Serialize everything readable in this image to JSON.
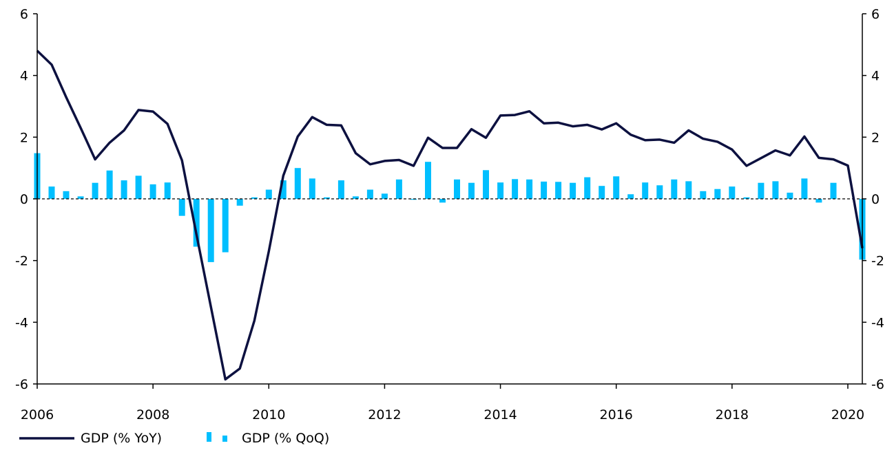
{
  "chart_data": {
    "type": "bar+line",
    "title": "",
    "xlabel": "",
    "ylabel": "",
    "ylim": [
      -6,
      6
    ],
    "yticks": [
      6,
      4,
      2,
      0,
      -2,
      -4,
      -6
    ],
    "ytick_labels": [
      "6",
      "4",
      "2",
      "0",
      "-2",
      "-4",
      "-6"
    ],
    "right_axis": true,
    "xlim": [
      2006,
      2020.25
    ],
    "xticks": [
      2006,
      2008,
      2010,
      2012,
      2014,
      2016,
      2018,
      2020
    ],
    "xtick_labels": [
      "2006",
      "2008",
      "2010",
      "2012",
      "2014",
      "2016",
      "2018",
      "2020"
    ],
    "zero_line": "dashed",
    "grid": false,
    "legend_position": "bottom-left",
    "x": [
      2006.0,
      2006.25,
      2006.5,
      2006.75,
      2007.0,
      2007.25,
      2007.5,
      2007.75,
      2008.0,
      2008.25,
      2008.5,
      2008.75,
      2009.0,
      2009.25,
      2009.5,
      2009.75,
      2010.0,
      2010.25,
      2010.5,
      2010.75,
      2011.0,
      2011.25,
      2011.5,
      2011.75,
      2012.0,
      2012.25,
      2012.5,
      2012.75,
      2013.0,
      2013.25,
      2013.5,
      2013.75,
      2014.0,
      2014.25,
      2014.5,
      2014.75,
      2015.0,
      2015.25,
      2015.5,
      2015.75,
      2016.0,
      2016.25,
      2016.5,
      2016.75,
      2017.0,
      2017.25,
      2017.5,
      2017.75,
      2018.0,
      2018.25,
      2018.5,
      2018.75,
      2019.0,
      2019.25,
      2019.5,
      2019.75,
      2020.0,
      2020.25
    ],
    "series": [
      {
        "name": "GDP (% YoY)",
        "kind": "line",
        "color": "#0d1140",
        "values": [
          4.8,
          4.35,
          3.3,
          2.3,
          1.28,
          1.82,
          2.22,
          2.88,
          2.83,
          2.43,
          1.25,
          -1.15,
          -3.5,
          -5.85,
          -5.5,
          -3.95,
          -1.7,
          0.75,
          2.02,
          2.65,
          2.4,
          2.38,
          1.48,
          1.12,
          1.23,
          1.26,
          1.07,
          1.98,
          1.65,
          1.65,
          2.26,
          1.98,
          2.7,
          2.72,
          2.84,
          2.45,
          2.47,
          2.35,
          2.4,
          2.25,
          2.45,
          2.08,
          1.9,
          1.92,
          1.82,
          2.22,
          1.95,
          1.85,
          1.6,
          1.07,
          1.32,
          1.57,
          1.41,
          2.02,
          1.33,
          1.28,
          1.08,
          -1.6
        ]
      },
      {
        "name": "GDP (% QoQ)",
        "kind": "bar",
        "color": "#00bfff",
        "values": [
          1.48,
          0.4,
          0.25,
          0.08,
          0.52,
          0.92,
          0.6,
          0.75,
          0.47,
          0.53,
          -0.55,
          -1.55,
          -2.05,
          -1.73,
          -0.22,
          0.05,
          0.3,
          0.6,
          1.0,
          0.66,
          0.05,
          0.6,
          0.08,
          0.3,
          0.17,
          0.63,
          -0.03,
          1.2,
          -0.12,
          0.63,
          0.52,
          0.93,
          0.53,
          0.64,
          0.63,
          0.56,
          0.55,
          0.52,
          0.7,
          0.42,
          0.73,
          0.15,
          0.53,
          0.44,
          0.63,
          0.57,
          0.25,
          0.32,
          0.4,
          0.05,
          0.52,
          0.57,
          0.2,
          0.66,
          -0.12,
          0.52,
          0.0,
          -1.97
        ]
      }
    ]
  }
}
